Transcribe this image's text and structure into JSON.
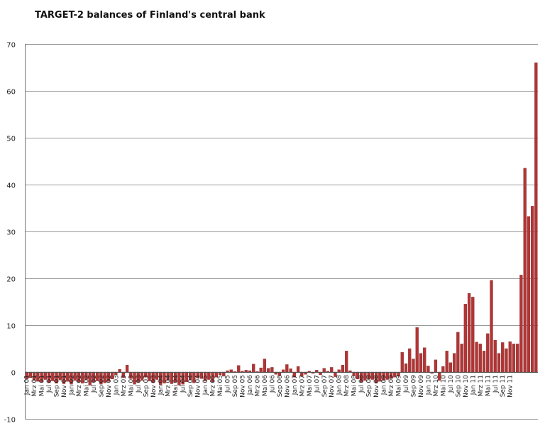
{
  "chart_data": {
    "type": "bar",
    "title": "TARGET-2 balances of Finland's central bank",
    "xlabel": "",
    "ylabel": "",
    "ylim": [
      -10,
      70
    ],
    "yticks": [
      -10,
      0,
      10,
      20,
      30,
      40,
      50,
      60,
      70
    ],
    "grid": true,
    "bar_color": "#b03535",
    "series": [
      {
        "name": "TARGET-2 balance",
        "values": [
          -1.5,
          -1.2,
          -1.8,
          -2.0,
          -2.2,
          -1.6,
          -2.3,
          -1.9,
          -2.4,
          -1.7,
          -2.5,
          -2.0,
          -2.6,
          -1.8,
          -2.2,
          -2.4,
          -1.6,
          -2.8,
          -2.1,
          -1.9,
          -2.6,
          -2.3,
          -2.0,
          -1.5,
          -0.6,
          0.6,
          -1.2,
          1.5,
          -1.4,
          -2.6,
          -2.2,
          -1.8,
          -1.1,
          -1.9,
          -2.3,
          -1.6,
          -2.7,
          -2.4,
          -1.8,
          -2.5,
          -2.2,
          -2.8,
          -2.6,
          -2.1,
          -1.7,
          -2.3,
          -1.2,
          -1.4,
          -1.9,
          -1.6,
          -2.2,
          -1.1,
          -0.6,
          -0.9,
          0.3,
          0.5,
          0.1,
          1.4,
          0.2,
          0.4,
          0.3,
          1.7,
          0.1,
          0.9,
          2.8,
          0.8,
          1.0,
          -0.5,
          -0.8,
          0.5,
          1.6,
          0.7,
          -1.1,
          1.2,
          -0.9,
          -0.5,
          0.2,
          -0.3,
          0.4,
          -0.6,
          0.8,
          0.2,
          1.0,
          -1.0,
          0.5,
          1.5,
          4.5,
          0.3,
          -0.8,
          -1.5,
          -2.2,
          -1.8,
          -1.5,
          -1.6,
          -2.4,
          -2.0,
          -1.8,
          -1.6,
          -1.4,
          -1.1,
          -0.9,
          4.2,
          1.8,
          5.0,
          2.8,
          9.5,
          4.0,
          5.2,
          1.3,
          -0.3,
          2.6,
          -1.8,
          1.2,
          4.5,
          2.0,
          4.0,
          8.5,
          6.0,
          14.5,
          16.8,
          16.0,
          6.4,
          6.0,
          4.5,
          8.2,
          19.6,
          6.8,
          4.0,
          6.3,
          5.0,
          6.5,
          6.0,
          6.0,
          20.7,
          43.5,
          33.2,
          35.4,
          66.0
        ]
      }
    ],
    "category_labels": [
      {
        "i": 0,
        "label": "Jan 01"
      },
      {
        "i": 2,
        "label": "Mrz 01"
      },
      {
        "i": 4,
        "label": "Mai 01"
      },
      {
        "i": 6,
        "label": "Jul 01"
      },
      {
        "i": 8,
        "label": "Sep 01"
      },
      {
        "i": 10,
        "label": "Nov 01"
      },
      {
        "i": 12,
        "label": "Jan 02"
      },
      {
        "i": 14,
        "label": "Mrz 02"
      },
      {
        "i": 16,
        "label": "Mai 02"
      },
      {
        "i": 18,
        "label": "Jul 02"
      },
      {
        "i": 20,
        "label": "Sep 02"
      },
      {
        "i": 22,
        "label": "Nov 02"
      },
      {
        "i": 24,
        "label": "Jan 03"
      },
      {
        "i": 26,
        "label": "Mrz 03"
      },
      {
        "i": 28,
        "label": "Mai 03"
      },
      {
        "i": 30,
        "label": "Jul 03"
      },
      {
        "i": 32,
        "label": "Sep 03"
      },
      {
        "i": 34,
        "label": "Nov 03"
      },
      {
        "i": 36,
        "label": "Jan 04"
      },
      {
        "i": 38,
        "label": "Mrz 04"
      },
      {
        "i": 40,
        "label": "Mai 04"
      },
      {
        "i": 42,
        "label": "Jul 04"
      },
      {
        "i": 44,
        "label": "Sep 04"
      },
      {
        "i": 46,
        "label": "Nov 04"
      },
      {
        "i": 48,
        "label": "Jan 05"
      },
      {
        "i": 50,
        "label": "Mrz 05"
      },
      {
        "i": 52,
        "label": "Mai 05"
      },
      {
        "i": 54,
        "label": "Jul 05"
      },
      {
        "i": 56,
        "label": "Sep 05"
      },
      {
        "i": 58,
        "label": "Nov 05"
      },
      {
        "i": 60,
        "label": "Jan 06"
      },
      {
        "i": 62,
        "label": "Mrz 06"
      },
      {
        "i": 64,
        "label": "Mai 06"
      },
      {
        "i": 66,
        "label": "Jul 06"
      },
      {
        "i": 68,
        "label": "Sep 06"
      },
      {
        "i": 70,
        "label": "Nov 06"
      },
      {
        "i": 72,
        "label": "Jan 07"
      },
      {
        "i": 74,
        "label": "Mrz 07"
      },
      {
        "i": 76,
        "label": "Mai 07"
      },
      {
        "i": 78,
        "label": "Jul 07"
      },
      {
        "i": 80,
        "label": "Sep 07"
      },
      {
        "i": 82,
        "label": "Nov 07"
      },
      {
        "i": 84,
        "label": "Jan 08"
      },
      {
        "i": 86,
        "label": "Mrz 08"
      },
      {
        "i": 88,
        "label": "Mai 08"
      },
      {
        "i": 90,
        "label": "Jul 08"
      },
      {
        "i": 92,
        "label": "Sep 08"
      },
      {
        "i": 94,
        "label": "Nov 08"
      },
      {
        "i": 96,
        "label": "Jan 09"
      },
      {
        "i": 98,
        "label": "Mrz 09"
      },
      {
        "i": 100,
        "label": "Mai 09"
      },
      {
        "i": 102,
        "label": "Jul 09"
      },
      {
        "i": 104,
        "label": "Sep 09"
      },
      {
        "i": 106,
        "label": "Nov 09"
      },
      {
        "i": 108,
        "label": "Jan 10"
      },
      {
        "i": 110,
        "label": "Mrz 10"
      },
      {
        "i": 112,
        "label": "Mai 10"
      },
      {
        "i": 114,
        "label": "Jul 10"
      },
      {
        "i": 116,
        "label": "Sep 10"
      },
      {
        "i": 118,
        "label": "Nov 10"
      },
      {
        "i": 120,
        "label": "Jan 11"
      },
      {
        "i": 122,
        "label": "Mrz 11"
      },
      {
        "i": 124,
        "label": "Mai 11"
      },
      {
        "i": 126,
        "label": "Jul 11"
      },
      {
        "i": 128,
        "label": "Sep 11"
      },
      {
        "i": 130,
        "label": "Nov 11"
      }
    ]
  }
}
